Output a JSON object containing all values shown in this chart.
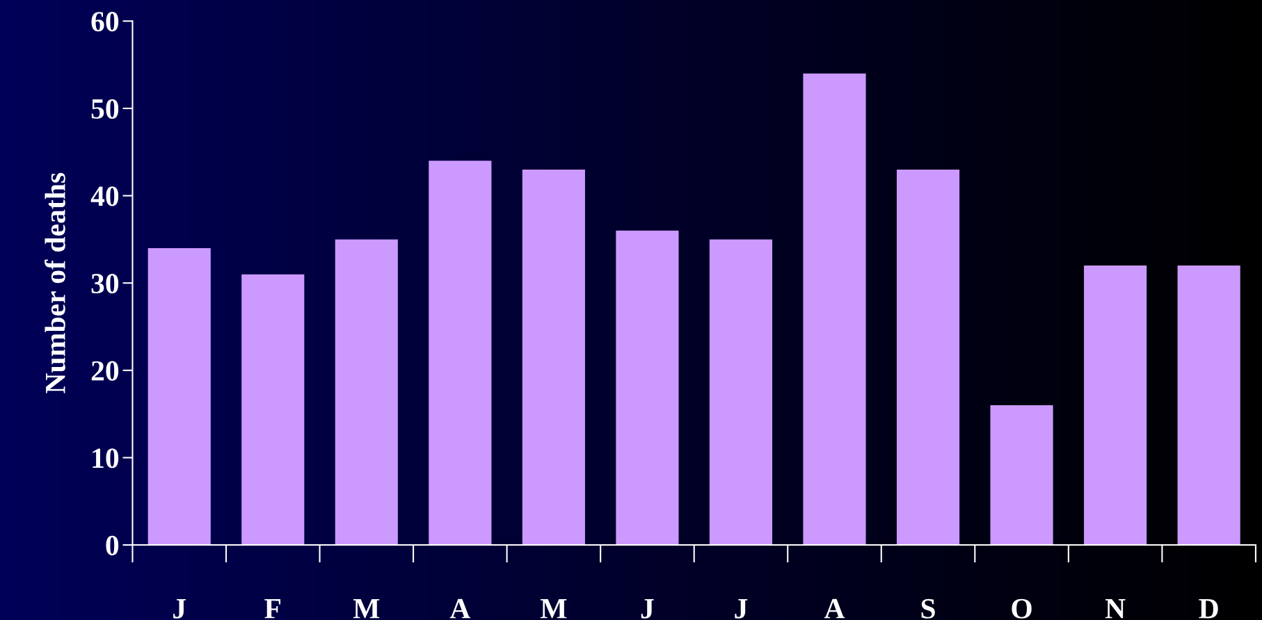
{
  "chart_data": {
    "type": "bar",
    "ylabel": "Number of deaths",
    "categories": [
      "J",
      "F",
      "M",
      "A",
      "M",
      "J",
      "J",
      "A",
      "S",
      "O",
      "N",
      "D"
    ],
    "values": [
      34,
      31,
      35,
      44,
      43,
      36,
      35,
      54,
      43,
      16,
      32,
      32
    ],
    "color": "#cc99ff",
    "ylim": [
      0,
      60
    ],
    "yticks": [
      0,
      10,
      20,
      30,
      40,
      50,
      60
    ],
    "grid": false,
    "legend": false
  }
}
